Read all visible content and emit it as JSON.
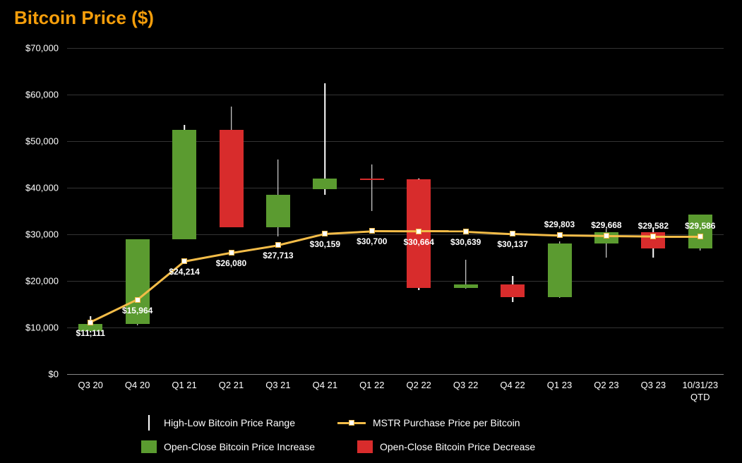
{
  "title": "Bitcoin Price ($)",
  "chart": {
    "type": "candlestick-line",
    "background_color": "#000000",
    "grid_color": "#333333",
    "baseline_color": "#888888",
    "y_axis": {
      "min": 0,
      "max": 70000,
      "step": 10000,
      "ticks": [
        "$0",
        "$10,000",
        "$20,000",
        "$30,000",
        "$40,000",
        "$50,000",
        "$60,000",
        "$70,000"
      ],
      "label_fontsize": 13,
      "label_color": "#ffffff"
    },
    "x_axis": {
      "categories": [
        "Q3 20",
        "Q4 20",
        "Q1 21",
        "Q2 21",
        "Q3 21",
        "Q4 21",
        "Q1 22",
        "Q2 22",
        "Q3 22",
        "Q4 22",
        "Q1 23",
        "Q2 23",
        "Q3 23",
        "10/31/23\nQTD"
      ],
      "label_fontsize": 13,
      "label_color": "#ffffff"
    },
    "colors": {
      "increase": "#5b9b30",
      "decrease": "#d82c2c",
      "wick": "#ffffff",
      "line": "#f3bc48",
      "marker_fill": "#ffffff",
      "marker_border": "#f3bc48"
    },
    "candle_width": 34,
    "wick_width": 1.5,
    "line_width": 2.5,
    "marker_size": 8,
    "candles": [
      {
        "period": "Q3 20",
        "low": 9000,
        "high": 12500,
        "open": 9200,
        "close": 10800,
        "direction": "up"
      },
      {
        "period": "Q4 20",
        "low": 10500,
        "high": 29000,
        "open": 10800,
        "close": 29000,
        "direction": "up"
      },
      {
        "period": "Q1 21",
        "low": 29000,
        "high": 53500,
        "open": 29000,
        "close": 52500,
        "direction": "up"
      },
      {
        "period": "Q2 21",
        "low": 31500,
        "high": 57500,
        "open": 52500,
        "close": 31500,
        "direction": "down"
      },
      {
        "period": "Q3 21",
        "low": 29500,
        "high": 46000,
        "open": 31500,
        "close": 38500,
        "direction": "up"
      },
      {
        "period": "Q4 21",
        "low": 38500,
        "high": 62500,
        "open": 39700,
        "close": 42000,
        "direction": "up"
      },
      {
        "period": "Q1 22",
        "low": 35000,
        "high": 45000,
        "open": 42000,
        "close": 41800,
        "direction": "down"
      },
      {
        "period": "Q2 22",
        "low": 18000,
        "high": 42000,
        "open": 41800,
        "close": 18500,
        "direction": "down"
      },
      {
        "period": "Q3 22",
        "low": 18300,
        "high": 24500,
        "open": 18500,
        "close": 19200,
        "direction": "up"
      },
      {
        "period": "Q4 22",
        "low": 15500,
        "high": 21000,
        "open": 19200,
        "close": 16500,
        "direction": "down"
      },
      {
        "period": "Q1 23",
        "low": 16300,
        "high": 28500,
        "open": 16500,
        "close": 28000,
        "direction": "up"
      },
      {
        "period": "Q2 23",
        "low": 25000,
        "high": 31000,
        "open": 28000,
        "close": 30500,
        "direction": "up"
      },
      {
        "period": "Q3 23",
        "low": 25000,
        "high": 31500,
        "open": 30500,
        "close": 27000,
        "direction": "down"
      },
      {
        "period": "10/31/23 QTD",
        "low": 26500,
        "high": 34200,
        "open": 27000,
        "close": 34200,
        "direction": "up"
      }
    ],
    "line_series": {
      "name": "MSTR Purchase Price per Bitcoin",
      "points": [
        {
          "period": "Q3 20",
          "value": 11111,
          "label": "$11,111",
          "label_pos": "below"
        },
        {
          "period": "Q4 20",
          "value": 15964,
          "label": "$15,964",
          "label_pos": "below"
        },
        {
          "period": "Q1 21",
          "value": 24214,
          "label": "$24,214",
          "label_pos": "below"
        },
        {
          "period": "Q2 21",
          "value": 26080,
          "label": "$26,080",
          "label_pos": "below"
        },
        {
          "period": "Q3 21",
          "value": 27713,
          "label": "$27,713",
          "label_pos": "below"
        },
        {
          "period": "Q4 21",
          "value": 30159,
          "label": "$30,159",
          "label_pos": "below"
        },
        {
          "period": "Q1 22",
          "value": 30700,
          "label": "$30,700",
          "label_pos": "below"
        },
        {
          "period": "Q2 22",
          "value": 30664,
          "label": "$30,664",
          "label_pos": "below"
        },
        {
          "period": "Q3 22",
          "value": 30639,
          "label": "$30,639",
          "label_pos": "below"
        },
        {
          "period": "Q4 22",
          "value": 30137,
          "label": "$30,137",
          "label_pos": "below"
        },
        {
          "period": "Q1 23",
          "value": 29803,
          "label": "$29,803",
          "label_pos": "above"
        },
        {
          "period": "Q2 23",
          "value": 29668,
          "label": "$29,668",
          "label_pos": "above"
        },
        {
          "period": "Q3 23",
          "value": 29582,
          "label": "$29,582",
          "label_pos": "above"
        },
        {
          "period": "10/31/23 QTD",
          "value": 29586,
          "label": "$29,586",
          "label_pos": "above"
        }
      ]
    }
  },
  "legend": {
    "items": [
      {
        "type": "wick",
        "label": "High-Low Bitcoin Price Range"
      },
      {
        "type": "line",
        "label": "MSTR Purchase Price per Bitcoin"
      },
      {
        "type": "swatch",
        "color": "#5b9b30",
        "label": "Open-Close Bitcoin Price Increase"
      },
      {
        "type": "swatch",
        "color": "#d82c2c",
        "label": "Open-Close Bitcoin Price Decrease"
      }
    ]
  }
}
